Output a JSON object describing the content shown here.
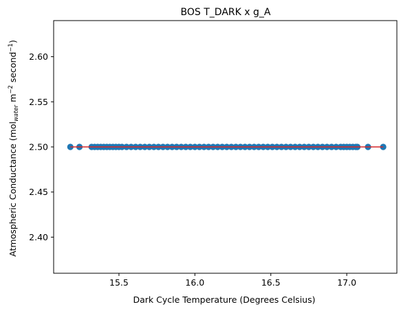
{
  "chart_data": {
    "type": "scatter",
    "title": "BOS T_DARK x g_A",
    "xlabel": "Dark Cycle Temperature (Degrees Celsius)",
    "ylabel": {
      "prefix": "Atmospheric Conductance (mol",
      "sub": "water",
      "mid1": " m",
      "sup1": "−2",
      "mid2": " second",
      "sup2": "−1",
      "suffix": ")"
    },
    "xlim": [
      15.07,
      17.33
    ],
    "ylim": [
      2.36,
      2.64
    ],
    "xticks": [
      15.5,
      16.0,
      16.5,
      17.0
    ],
    "xtick_labels": [
      "15.5",
      "16.0",
      "16.5",
      "17.0"
    ],
    "yticks": [
      2.4,
      2.45,
      2.5,
      2.55,
      2.6
    ],
    "ytick_labels": [
      "2.40",
      "2.45",
      "2.50",
      "2.55",
      "2.60"
    ],
    "grid": false,
    "points": {
      "y": 2.5,
      "x": [
        15.18,
        15.24,
        15.32,
        15.34,
        15.36,
        15.38,
        15.4,
        15.42,
        15.44,
        15.46,
        15.48,
        15.5,
        15.52,
        15.55,
        15.58,
        15.61,
        15.64,
        15.67,
        15.7,
        15.73,
        15.76,
        15.79,
        15.82,
        15.85,
        15.88,
        15.91,
        15.94,
        15.97,
        16.0,
        16.03,
        16.06,
        16.09,
        16.12,
        16.15,
        16.18,
        16.21,
        16.24,
        16.27,
        16.3,
        16.33,
        16.36,
        16.39,
        16.42,
        16.45,
        16.48,
        16.51,
        16.54,
        16.57,
        16.6,
        16.63,
        16.66,
        16.69,
        16.72,
        16.75,
        16.78,
        16.81,
        16.84,
        16.87,
        16.9,
        16.93,
        16.96,
        16.98,
        17.0,
        17.02,
        17.04,
        17.06,
        17.07,
        17.14,
        17.24
      ],
      "color": "#1f77b4"
    },
    "fit_line": {
      "x": [
        15.18,
        17.24
      ],
      "y": [
        2.5,
        2.5
      ],
      "color": "#d62728"
    }
  }
}
